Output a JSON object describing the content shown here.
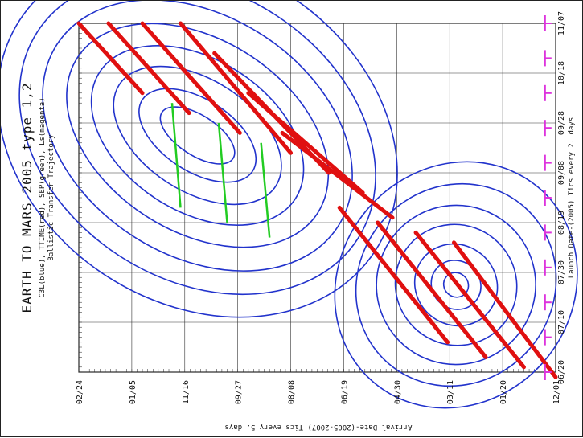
{
  "chart_data": {
    "type": "contour",
    "title": "EARTH TO MARS 2005 type 1,2",
    "legend": "C3L(blue), TTIME(red), SEP(green), Ls(magenta)",
    "subtitle": "Ballistic Transfer Trajectory",
    "xlabel": "Launch Date-(2005) Tics every 2. days",
    "ylabel": "Arrival Date-(2005-2007) Tics every 5. days",
    "x_ticks": [
      "06/20",
      "07/10",
      "07/30",
      "08/19",
      "09/08",
      "09/28",
      "10/18",
      "11/07"
    ],
    "y_ticks": [
      "02/24",
      "01/05",
      "11/16",
      "09/27",
      "08/08",
      "06/19",
      "04/30",
      "03/11",
      "01/20",
      "12/01"
    ],
    "x_range_days": [
      0,
      140
    ],
    "y_range_days": [
      0,
      450
    ],
    "grid": true,
    "series": [
      {
        "name": "C3L",
        "color": "#2233cc",
        "centers": [
          {
            "x": 95,
            "y": 112,
            "rx": [
              5,
              9,
              14,
              19,
              24,
              30,
              36,
              42
            ],
            "ry": [
              40,
              62,
              88,
              110,
              135,
              158,
              180,
              200
            ]
          },
          {
            "x": 35,
            "y": 356,
            "rx": [
              3,
              6,
              10,
              15,
              20,
              26,
              32
            ],
            "ry": [
              12,
              24,
              40,
              58,
              75,
              92,
              110
            ]
          }
        ]
      },
      {
        "name": "TTIME",
        "color": "#e01010",
        "lines": [
          [
            [
              140,
              0
            ],
            [
              112,
              60
            ]
          ],
          [
            [
              140,
              28
            ],
            [
              104,
              104
            ]
          ],
          [
            [
              140,
              60
            ],
            [
              96,
              152
            ]
          ],
          [
            [
              140,
              96
            ],
            [
              88,
              200
            ]
          ],
          [
            [
              128,
              128
            ],
            [
              80,
              236
            ]
          ],
          [
            [
              112,
              160
            ],
            [
              72,
              268
            ]
          ],
          [
            [
              96,
              192
            ],
            [
              62,
              296
            ]
          ],
          [
            [
              66,
              246
            ],
            [
              12,
              348
            ]
          ],
          [
            [
              60,
              282
            ],
            [
              6,
              384
            ]
          ],
          [
            [
              56,
              318
            ],
            [
              2,
              420
            ]
          ],
          [
            [
              52,
              354
            ],
            [
              -2,
              450
            ]
          ]
        ]
      },
      {
        "name": "SEP",
        "color": "#22cc22",
        "lines": [
          [
            [
              108,
              88
            ],
            [
              66,
              96
            ]
          ],
          [
            [
              100,
              132
            ],
            [
              60,
              140
            ]
          ],
          [
            [
              92,
              172
            ],
            [
              54,
              180
            ]
          ]
        ]
      },
      {
        "name": "Ls",
        "color": "#dd33dd",
        "y": 440,
        "x": [
          0,
          14,
          28,
          42,
          56,
          70,
          84,
          98,
          112,
          126,
          140
        ]
      }
    ]
  }
}
